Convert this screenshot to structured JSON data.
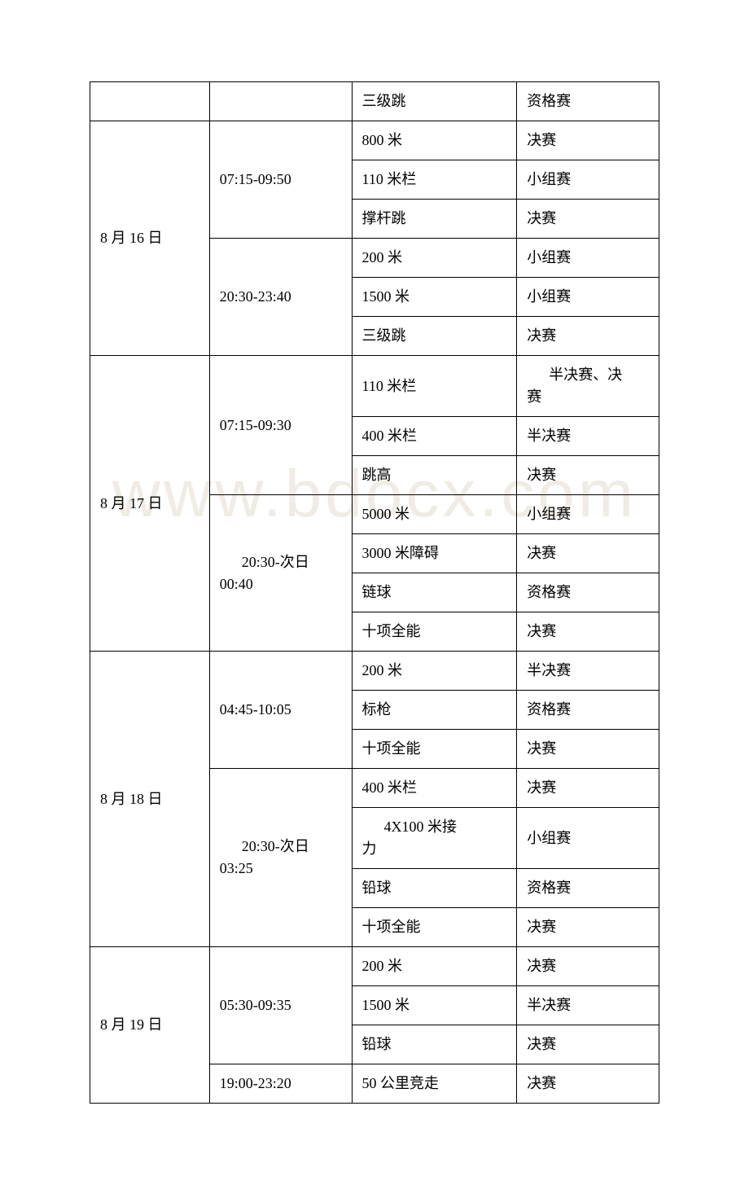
{
  "watermark": "www.bdocx.com",
  "rows": [
    {
      "date": "",
      "date_rowspan": 1,
      "time": "",
      "time_rowspan": 1,
      "event": "三级跳",
      "stage": "资格赛"
    },
    {
      "date": "8 月 16 日",
      "date_rowspan": 6,
      "time": "07:15-09:50",
      "time_rowspan": 3,
      "event": "800 米",
      "stage": "决赛"
    },
    {
      "event": "110 米栏",
      "stage": "小组赛"
    },
    {
      "event": "撑杆跳",
      "stage": "决赛"
    },
    {
      "time": "20:30-23:40",
      "time_rowspan": 3,
      "event": "200 米",
      "stage": "小组赛"
    },
    {
      "event": "1500 米",
      "stage": "小组赛"
    },
    {
      "event": "三级跳",
      "stage": "决赛"
    },
    {
      "date": "8 月 17 日",
      "date_rowspan": 7,
      "time": "07:15-09:30",
      "time_rowspan": 3,
      "event": "110 米栏",
      "stage": "半决赛、决赛",
      "stage_indent": true
    },
    {
      "event": "400 米栏",
      "stage": "半决赛"
    },
    {
      "event": "跳高",
      "stage": "决赛"
    },
    {
      "time": "20:30-次日00:40",
      "time_rowspan": 4,
      "time_indent": true,
      "event": "5000 米",
      "stage": "小组赛"
    },
    {
      "event": "3000 米障碍",
      "stage": "决赛"
    },
    {
      "event": "链球",
      "stage": "资格赛"
    },
    {
      "event": "十项全能",
      "stage": "决赛"
    },
    {
      "date": "8 月 18 日",
      "date_rowspan": 7,
      "time": "04:45-10:05",
      "time_rowspan": 3,
      "event": "200 米",
      "stage": "半决赛"
    },
    {
      "event": "标枪",
      "stage": "资格赛"
    },
    {
      "event": "十项全能",
      "stage": "决赛"
    },
    {
      "time": "20:30-次日03:25",
      "time_rowspan": 4,
      "time_indent": true,
      "event": "400 米栏",
      "stage": "决赛"
    },
    {
      "event": "4X100 米接力",
      "event_indent": true,
      "stage": "小组赛"
    },
    {
      "event": "铅球",
      "stage": "资格赛"
    },
    {
      "event": "十项全能",
      "stage": "决赛"
    },
    {
      "date": "8 月 19 日",
      "date_rowspan": 4,
      "time": "05:30-09:35",
      "time_rowspan": 3,
      "event": "200 米",
      "stage": "决赛"
    },
    {
      "event": "1500 米",
      "stage": "半决赛"
    },
    {
      "event": "铅球",
      "stage": "决赛"
    },
    {
      "time": "19:00-23:20",
      "time_rowspan": 1,
      "event": "50 公里竞走",
      "stage": "决赛"
    }
  ]
}
